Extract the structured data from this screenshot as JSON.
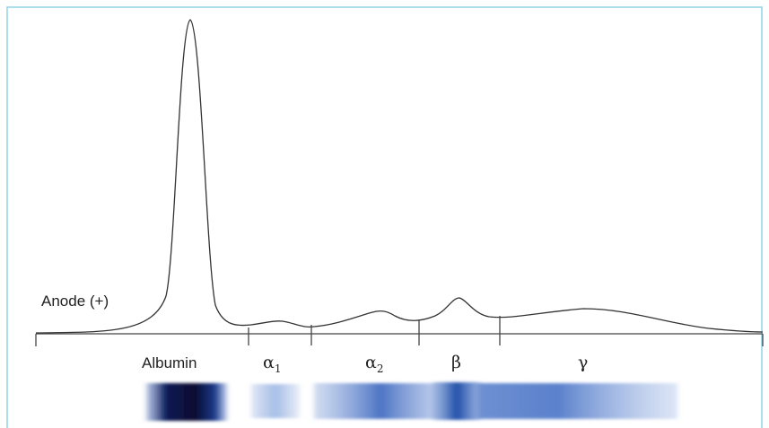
{
  "anode_label": "Anode (+)",
  "fractions": [
    {
      "symbol": "Albumin"
    },
    {
      "symbol": "α",
      "subscript": "1"
    },
    {
      "symbol": "α",
      "subscript": "2"
    },
    {
      "symbol": "β"
    },
    {
      "symbol": "γ"
    }
  ]
}
